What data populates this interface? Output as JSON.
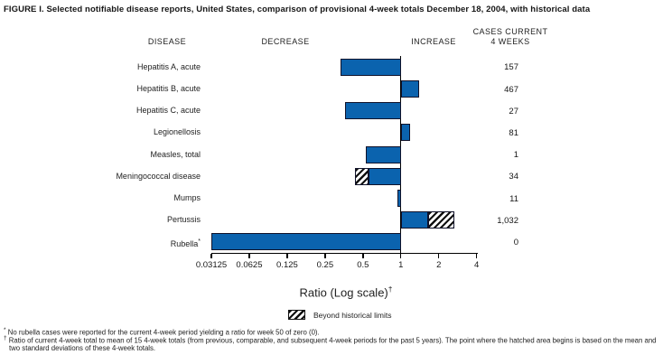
{
  "figure": {
    "title": "FIGURE I. Selected notifiable disease reports, United States, comparison of provisional 4-week totals December 18, 2004, with historical data",
    "columns": {
      "disease": "DISEASE",
      "decrease": "DECREASE",
      "increase": "INCREASE",
      "cases_line1": "CASES CURRENT",
      "cases_line2": "4 WEEKS"
    },
    "axis": {
      "label": "Ratio (Log scale)",
      "label_sup": "†"
    },
    "legend": {
      "hatch_label": "Beyond historical limits"
    },
    "footnotes": [
      {
        "marker": "*",
        "text": "No rubella cases were reported for the current 4-week period yielding a ratio for week 50 of zero (0)."
      },
      {
        "marker": "†",
        "text": "Ratio of current 4-week total to mean of 15 4-week totals (from previous, comparable, and subsequent 4-week periods for the past 5 years). The point where the hatched area begins is based on the mean and two standard deviations of these 4-week totals."
      }
    ]
  },
  "chart_data": {
    "type": "bar",
    "orientation": "horizontal",
    "scale": "log2",
    "title": "Selected notifiable disease reports, United States, comparison of provisional 4-week totals December 18, 2004, with historical data",
    "xlabel": "Ratio (Log scale)",
    "xlim": [
      0.03125,
      4
    ],
    "reference_line": 1,
    "tick_labels": [
      "0.03125",
      "0.0625",
      "0.125",
      "0.25",
      "0.5",
      "1",
      "2",
      "4"
    ],
    "cases_column_header": "CASES CURRENT 4 WEEKS",
    "rows": [
      {
        "label": "Hepatitis A, acute",
        "ratio": 0.33,
        "hatch_from": null,
        "cases": "157",
        "beyond_limits": false
      },
      {
        "label": "Hepatitis B, acute",
        "ratio": 1.4,
        "hatch_from": null,
        "cases": "467",
        "beyond_limits": false
      },
      {
        "label": "Hepatitis C, acute",
        "ratio": 0.36,
        "hatch_from": null,
        "cases": "27",
        "beyond_limits": false
      },
      {
        "label": "Legionellosis",
        "ratio": 1.19,
        "hatch_from": null,
        "cases": "81",
        "beyond_limits": false
      },
      {
        "label": "Measles, total",
        "ratio": 0.53,
        "hatch_from": null,
        "cases": "1",
        "beyond_limits": false
      },
      {
        "label": "Meningococcal disease",
        "ratio": 0.43,
        "hatch_from": 0.55,
        "cases": "34",
        "beyond_limits": true
      },
      {
        "label": "Mumps",
        "ratio": 0.94,
        "hatch_from": null,
        "cases": "11",
        "beyond_limits": false
      },
      {
        "label": "Pertussis",
        "ratio": 2.65,
        "hatch_from": 1.65,
        "cases": "1,032",
        "beyond_limits": true
      },
      {
        "label": "Rubella",
        "label_sup": "*",
        "ratio": 0,
        "hatch_from": null,
        "cases": "0",
        "beyond_limits": false
      }
    ],
    "legend_note": "Hatched segments indicate values beyond historical limits",
    "colors": {
      "bar_fill": "#0b63ae",
      "bar_border": "#10122a",
      "hatch": "#101010"
    }
  }
}
